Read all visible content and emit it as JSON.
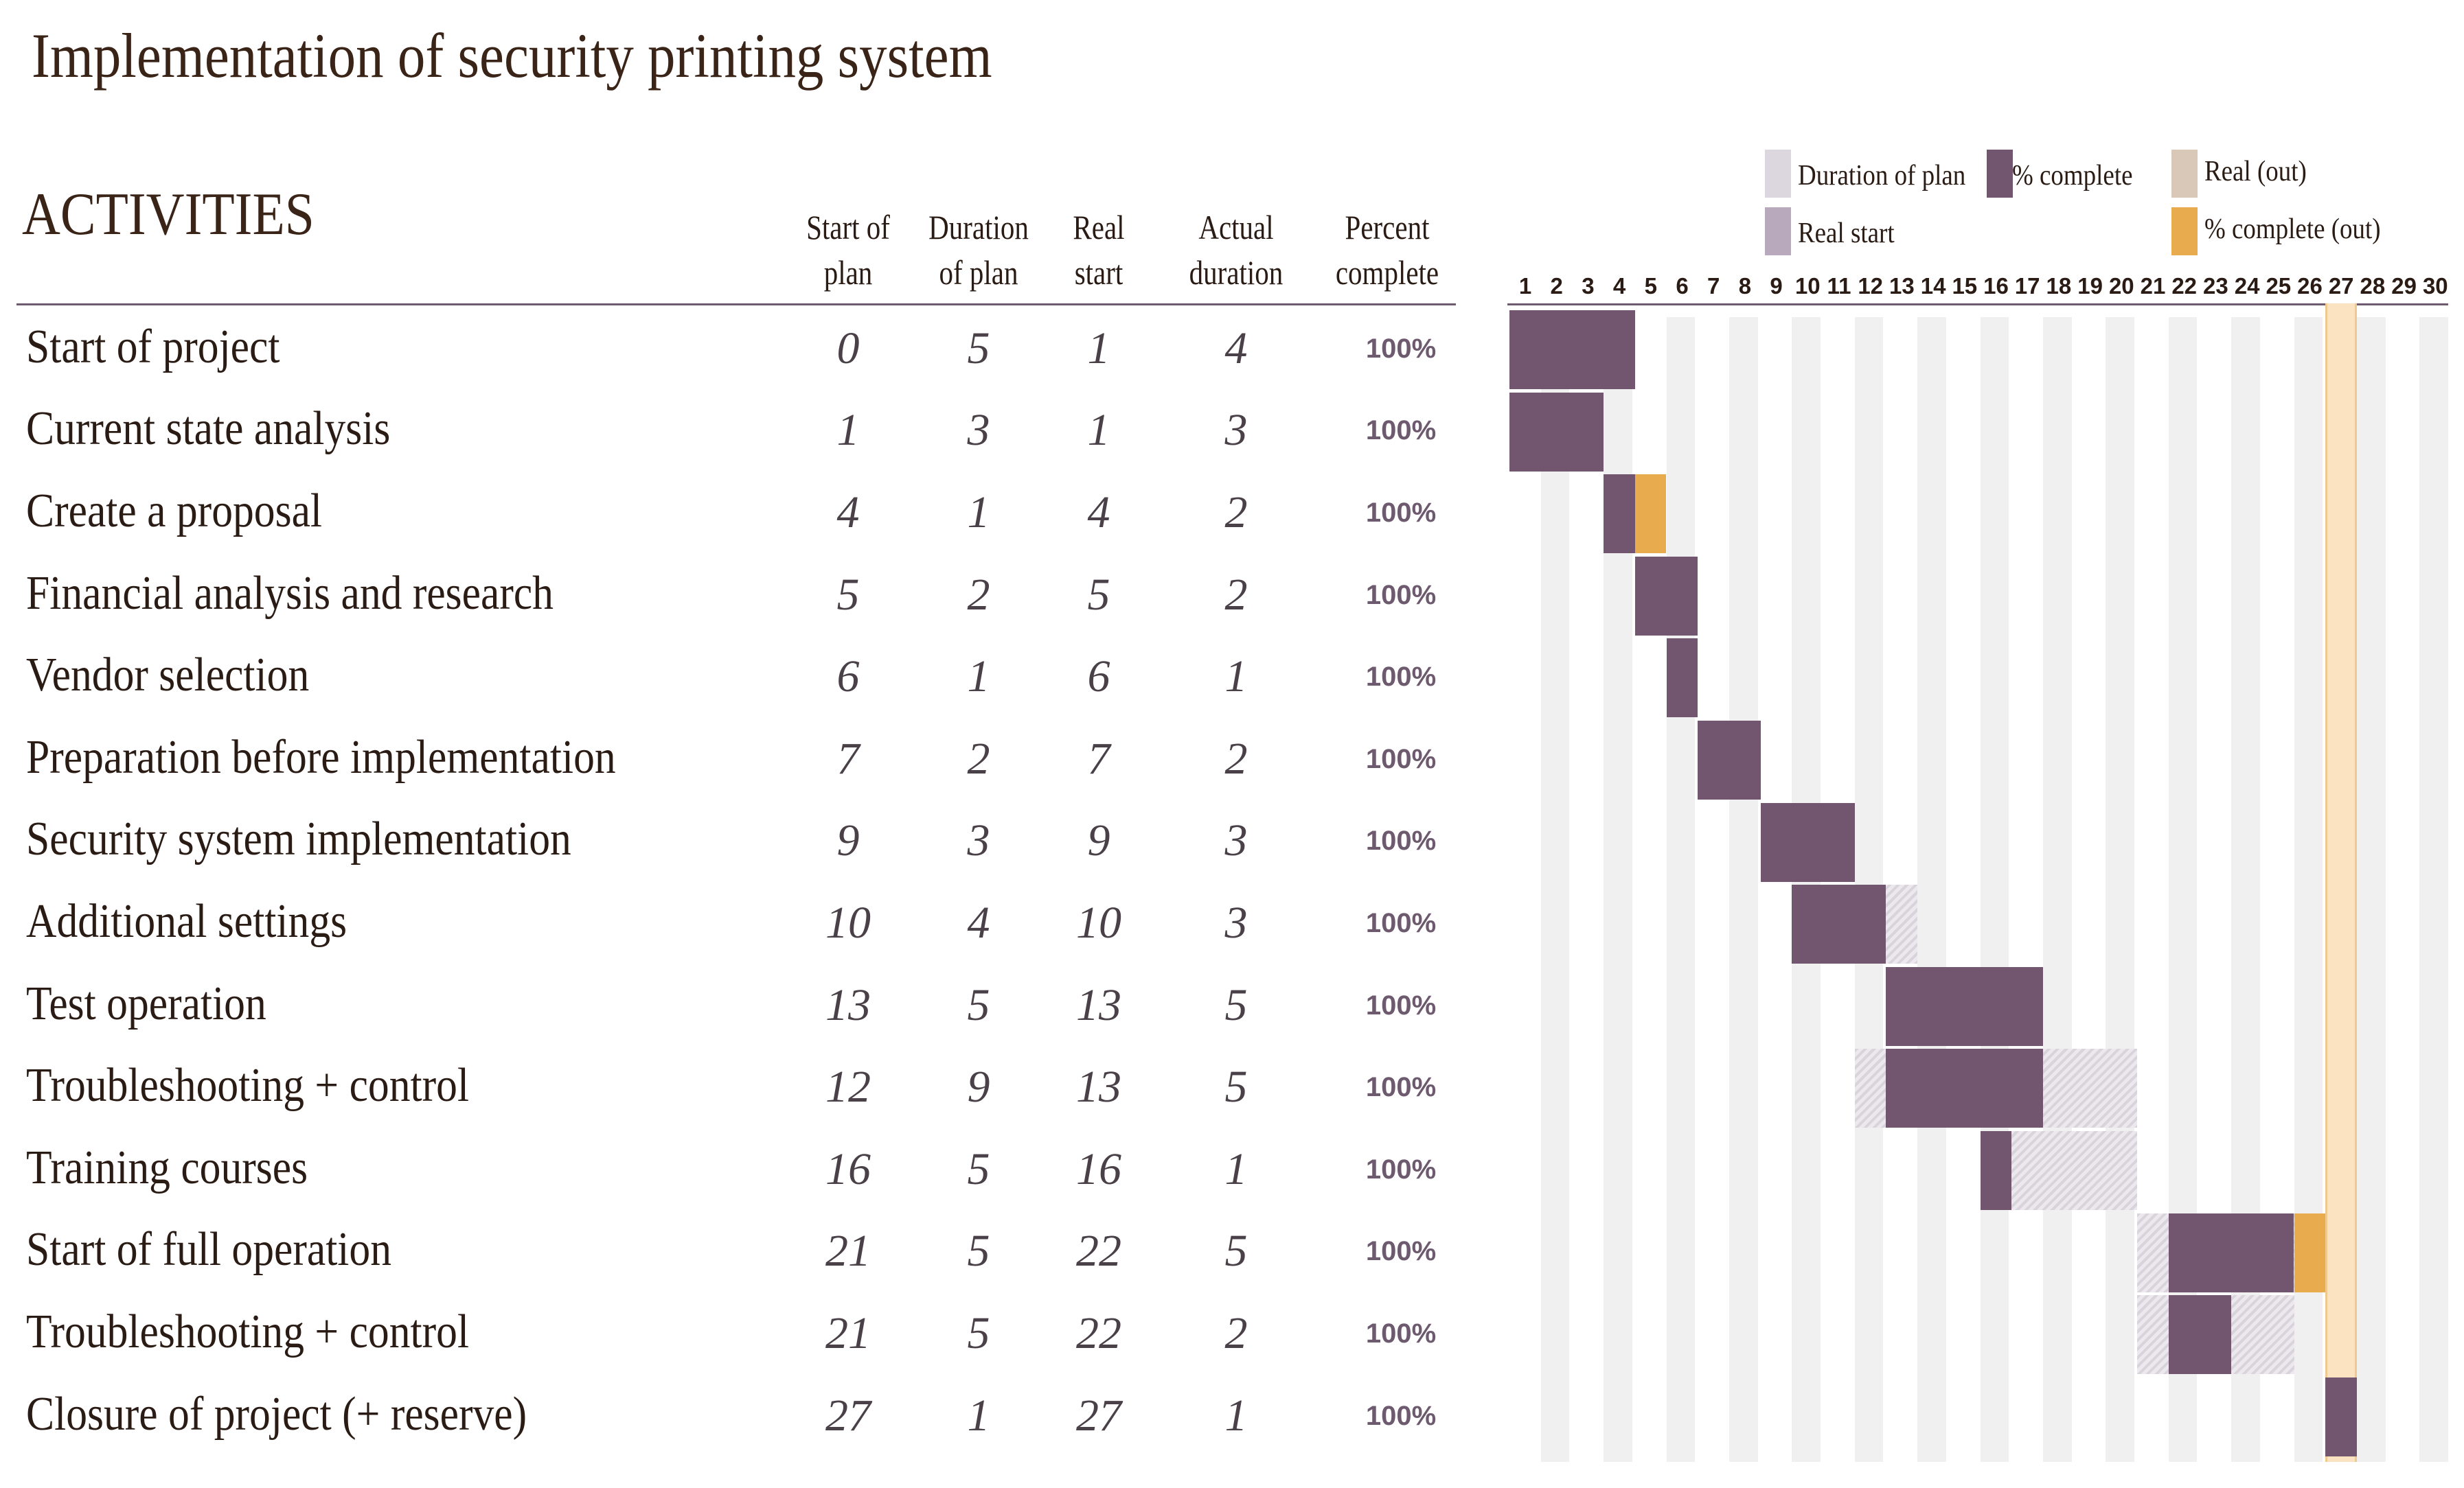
{
  "chart_data": {
    "type": "gantt",
    "title": "Implementation of security printing system",
    "activities_header": "ACTIVITIES",
    "columns": [
      "Start of plan",
      "Duration of plan",
      "Real start",
      "Actual duration",
      "Percent complete"
    ],
    "column_headers": [
      [
        "Start of",
        "plan"
      ],
      [
        "Duration",
        "of plan"
      ],
      [
        "Real",
        "start"
      ],
      [
        "Actual",
        "duration"
      ],
      [
        "Percent",
        "complete"
      ]
    ],
    "periods": [
      1,
      2,
      3,
      4,
      5,
      6,
      7,
      8,
      9,
      10,
      11,
      12,
      13,
      14,
      15,
      16,
      17,
      18,
      19,
      20,
      21,
      22,
      23,
      24,
      25,
      26,
      27,
      28,
      29,
      30
    ],
    "highlight_period": 27,
    "tasks": [
      {
        "name": "Start of project",
        "plan_start": 0,
        "plan_duration": 5,
        "real_start": 1,
        "actual_duration": 4,
        "percent": "100%"
      },
      {
        "name": "Current state analysis",
        "plan_start": 1,
        "plan_duration": 3,
        "real_start": 1,
        "actual_duration": 3,
        "percent": "100%"
      },
      {
        "name": "Create a proposal",
        "plan_start": 4,
        "plan_duration": 1,
        "real_start": 4,
        "actual_duration": 2,
        "percent": "100%"
      },
      {
        "name": "Financial analysis and research",
        "plan_start": 5,
        "plan_duration": 2,
        "real_start": 5,
        "actual_duration": 2,
        "percent": "100%"
      },
      {
        "name": "Vendor selection",
        "plan_start": 6,
        "plan_duration": 1,
        "real_start": 6,
        "actual_duration": 1,
        "percent": "100%"
      },
      {
        "name": "Preparation before implementation",
        "plan_start": 7,
        "plan_duration": 2,
        "real_start": 7,
        "actual_duration": 2,
        "percent": "100%"
      },
      {
        "name": "Security system implementation",
        "plan_start": 9,
        "plan_duration": 3,
        "real_start": 9,
        "actual_duration": 3,
        "percent": "100%"
      },
      {
        "name": "Additional settings",
        "plan_start": 10,
        "plan_duration": 4,
        "real_start": 10,
        "actual_duration": 3,
        "percent": "100%"
      },
      {
        "name": "Test operation",
        "plan_start": 13,
        "plan_duration": 5,
        "real_start": 13,
        "actual_duration": 5,
        "percent": "100%"
      },
      {
        "name": "Troubleshooting + control",
        "plan_start": 12,
        "plan_duration": 9,
        "real_start": 13,
        "actual_duration": 5,
        "percent": "100%"
      },
      {
        "name": "Training courses",
        "plan_start": 16,
        "plan_duration": 5,
        "real_start": 16,
        "actual_duration": 1,
        "percent": "100%"
      },
      {
        "name": "Start of full operation",
        "plan_start": 21,
        "plan_duration": 5,
        "real_start": 22,
        "actual_duration": 5,
        "percent": "100%"
      },
      {
        "name": "Troubleshooting + control",
        "plan_start": 21,
        "plan_duration": 5,
        "real_start": 22,
        "actual_duration": 2,
        "percent": "100%"
      },
      {
        "name": "Closure of project (+ reserve)",
        "plan_start": 27,
        "plan_duration": 1,
        "real_start": 27,
        "actual_duration": 1,
        "percent": "100%"
      }
    ],
    "legend": [
      {
        "label": "Duration of plan",
        "color": "#dcd6df"
      },
      {
        "label": "% complete",
        "color": "#725670"
      },
      {
        "label": "Real (out)",
        "color": "#d9c8b8"
      },
      {
        "label": "Real start",
        "color": "#b9a9bd"
      },
      {
        "label": "% complete (out)",
        "color": "#e8ac4e"
      }
    ],
    "colors": {
      "complete": "#725670",
      "complete_out": "#e8ac4e",
      "plan": "#dcd6df",
      "highlight": "#fbe3c2",
      "highlight_border": "#f0c98f"
    }
  }
}
